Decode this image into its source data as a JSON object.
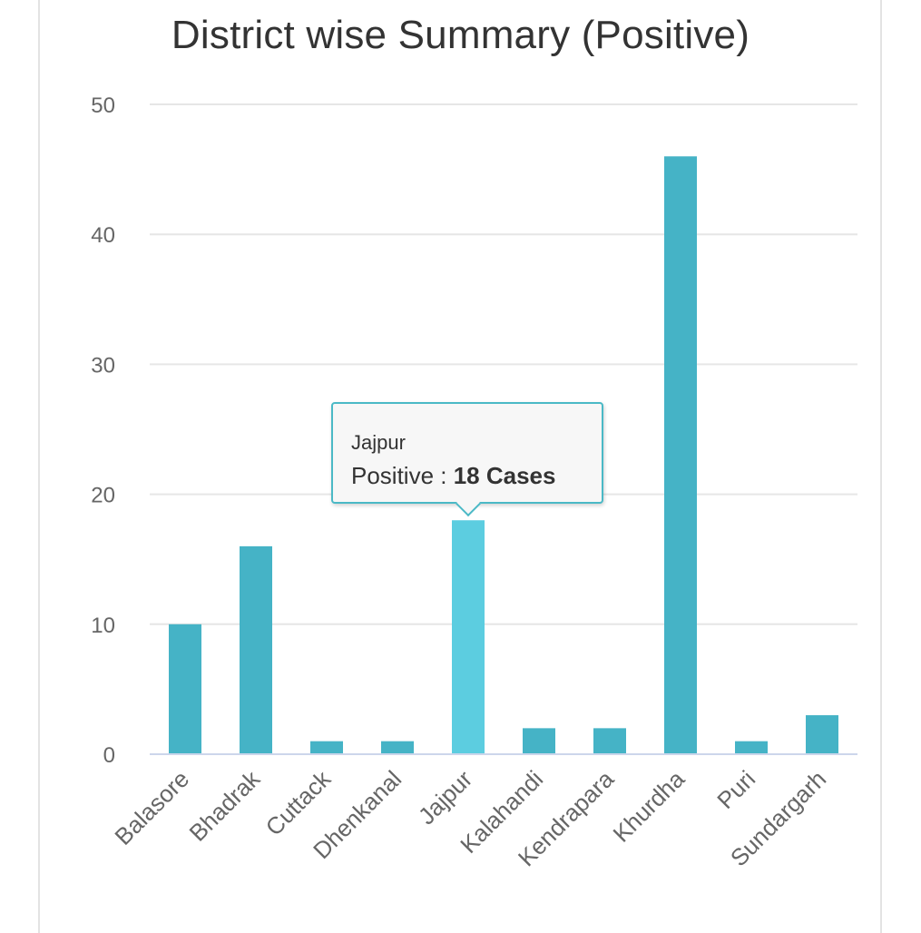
{
  "chart_data": {
    "type": "bar",
    "title": "District wise Summary (Positive)",
    "categories": [
      "Balasore",
      "Bhadrak",
      "Cuttack",
      "Dhenkanal",
      "Jajpur",
      "Kalahandi",
      "Kendrapara",
      "Khurdha",
      "Puri",
      "Sundargarh"
    ],
    "series": [
      {
        "values": [
          10,
          16,
          1,
          1,
          18,
          2,
          2,
          46,
          1,
          3
        ]
      }
    ],
    "ylim": [
      0,
      50
    ],
    "yticks": [
      0,
      10,
      20,
      30,
      40,
      50
    ],
    "grid": true,
    "colors": {
      "bar": "#45b3c6",
      "bar_highlight": "#5ccde0",
      "grid": "#e6e6e6",
      "axis": "#ccd6eb"
    },
    "highlighted_index": 4
  },
  "tooltip": {
    "category": "Jajpur",
    "series_label": "Positive : ",
    "value_text": "18 Cases"
  }
}
